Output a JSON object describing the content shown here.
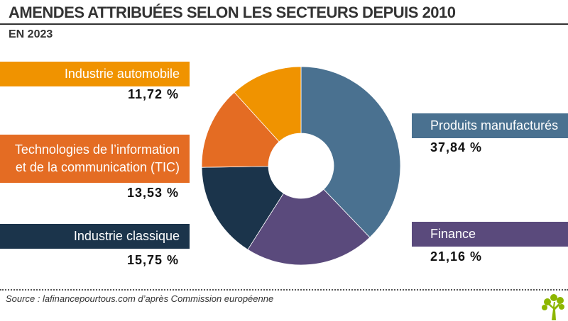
{
  "header": {
    "title": "AMENDES ATTRIBUÉES SELON LES SECTEURS DEPUIS 2010",
    "subtitle": "EN 2023"
  },
  "labels": {
    "industrie_automobile": {
      "name": "Industrie automobile",
      "pct": "11,72 %"
    },
    "tic": {
      "name_line1": "Technologies de l’information",
      "name_line2": "et de la communication (TIC)",
      "pct": "13,53 %"
    },
    "industrie_classique": {
      "name": "Industrie classique",
      "pct": "15,75 %"
    },
    "produits_manufactures": {
      "name": "Produits manufacturés",
      "pct": "37,84 %"
    },
    "finance": {
      "name": "Finance",
      "pct": "21,16 %"
    }
  },
  "footer": {
    "source": "Source : lafinancepourtous.com d’après Commission européenne",
    "logo_icon": "tree-icon"
  },
  "chart_data": {
    "type": "pie",
    "variant": "donut",
    "title": "AMENDES ATTRIBUÉES SELON LES SECTEURS DEPUIS 2010",
    "subtitle": "EN 2023",
    "unit": "%",
    "start": "12 o'clock",
    "direction": "clockwise",
    "categories": [
      "Produits manufacturés",
      "Finance",
      "Industrie classique",
      "Technologies de l’information et de la communication (TIC)",
      "Industrie automobile"
    ],
    "values": [
      37.84,
      21.16,
      15.75,
      13.53,
      11.72
    ],
    "colors": [
      "#4a7190",
      "#5a4a7c",
      "#1b344b",
      "#e46c23",
      "#f09300"
    ],
    "source": "Source : lafinancepourtous.com d’après Commission européenne"
  }
}
